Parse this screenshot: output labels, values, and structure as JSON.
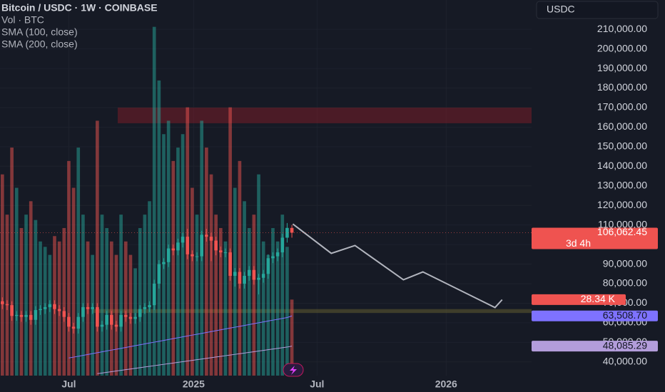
{
  "chart_data": {
    "type": "candlestick",
    "title": "Bitcoin / USDC · 1W · COINBASE",
    "legend": [
      "Vol · BTC",
      "SMA (100, close)",
      "SMA (200, close)"
    ],
    "currency_button": "USDC",
    "x": [
      0,
      1,
      2,
      3,
      4,
      5,
      6,
      7,
      8,
      9,
      10,
      11,
      12,
      13,
      14,
      15,
      16,
      17,
      18,
      19,
      20,
      21,
      22,
      23,
      24,
      25,
      26,
      27,
      28,
      29,
      30,
      31,
      32,
      33,
      34,
      35,
      36,
      37,
      38,
      39,
      40,
      41,
      42,
      43,
      44,
      45,
      46,
      47,
      48,
      49,
      50,
      51,
      52,
      53,
      54,
      55,
      56,
      57,
      58,
      59,
      60,
      61
    ],
    "open": [
      71000,
      69500,
      69000,
      63500,
      64000,
      63000,
      64000,
      61500,
      66500,
      67000,
      68000,
      69500,
      67000,
      66000,
      63000,
      58000,
      57000,
      63000,
      68000,
      67000,
      68000,
      58000,
      59000,
      64000,
      59000,
      58000,
      64000,
      63000,
      62000,
      63000,
      67000,
      68000,
      69000,
      80000,
      90000,
      91000,
      98000,
      97000,
      101000,
      104000,
      95000,
      94000,
      94000,
      105000,
      104000,
      102000,
      97000,
      96000,
      96000,
      84000,
      86000,
      80000,
      84000,
      87000,
      82000,
      83000,
      85000,
      93000,
      94000,
      96000,
      103500,
      108500
    ],
    "high": [
      73000,
      71500,
      71000,
      66000,
      66000,
      66000,
      66000,
      68500,
      69000,
      70000,
      71500,
      71500,
      69000,
      68000,
      65000,
      60000,
      65000,
      70000,
      70000,
      70000,
      70000,
      61000,
      66000,
      66000,
      61000,
      66000,
      66000,
      65000,
      65000,
      69000,
      70000,
      71000,
      82000,
      92000,
      93000,
      100000,
      100000,
      103000,
      106000,
      108000,
      97000,
      96000,
      107000,
      108000,
      106000,
      104000,
      99000,
      98000,
      98000,
      88000,
      88000,
      86000,
      89000,
      89000,
      85000,
      87000,
      95000,
      96000,
      98000,
      105500,
      111000,
      110000
    ],
    "low": [
      67000,
      66500,
      61000,
      61000,
      60500,
      60500,
      59000,
      59000,
      64000,
      64500,
      65500,
      64500,
      63500,
      60500,
      55500,
      54500,
      54500,
      60500,
      64500,
      64500,
      55500,
      55500,
      56500,
      56500,
      55500,
      55500,
      60500,
      59500,
      59500,
      60500,
      64500,
      65500,
      66500,
      77500,
      87500,
      88500,
      94500,
      94500,
      98500,
      92500,
      91500,
      91500,
      91500,
      101500,
      91500,
      94500,
      93500,
      93500,
      81500,
      78500,
      77500,
      77500,
      81500,
      79500,
      74500,
      80500,
      82500,
      90500,
      91500,
      93500,
      101000,
      103500
    ],
    "close": [
      69500,
      69000,
      63500,
      64000,
      63000,
      64000,
      61500,
      66500,
      67000,
      68000,
      69500,
      67000,
      66000,
      63000,
      58000,
      57000,
      63000,
      68000,
      67000,
      68000,
      58000,
      59000,
      64000,
      59000,
      58000,
      64000,
      63000,
      62000,
      63000,
      67000,
      68000,
      69000,
      80000,
      90000,
      91000,
      98000,
      97000,
      101000,
      104000,
      95000,
      94000,
      94000,
      105000,
      104000,
      102000,
      97000,
      96000,
      96000,
      84000,
      86000,
      80000,
      84000,
      87000,
      82000,
      83000,
      85000,
      93000,
      94000,
      96000,
      103500,
      108500,
      106062.45
    ],
    "up_color": "#26a69a",
    "down_color": "#ef5350",
    "volume": {
      "values": [
        75,
        60,
        85,
        70,
        55,
        60,
        65,
        58,
        50,
        48,
        45,
        52,
        50,
        55,
        80,
        70,
        85,
        60,
        50,
        45,
        95,
        60,
        55,
        50,
        45,
        60,
        50,
        45,
        40,
        55,
        60,
        65,
        130,
        110,
        90,
        95,
        80,
        85,
        90,
        100,
        70,
        60,
        95,
        85,
        75,
        60,
        55,
        50,
        100,
        70,
        80,
        65,
        55,
        60,
        75,
        50,
        45,
        55,
        50,
        60,
        48,
        28.34
      ],
      "last_label": "28.34 K",
      "ylim": [
        0,
        140
      ]
    },
    "series": [
      {
        "name": "SMA (100, close)",
        "color": "#7e72ff",
        "last_label": "63,508.70",
        "values": [
          null,
          null,
          null,
          null,
          null,
          null,
          null,
          null,
          null,
          null,
          null,
          null,
          null,
          null,
          42000,
          42450,
          42900,
          43350,
          43800,
          44250,
          44700,
          45150,
          45600,
          46050,
          46500,
          46950,
          47400,
          47850,
          48300,
          48750,
          49200,
          49650,
          50100,
          50550,
          51000,
          51450,
          51900,
          52350,
          52800,
          53250,
          53700,
          54150,
          54600,
          55050,
          55500,
          55950,
          56400,
          56850,
          57300,
          57750,
          58200,
          58650,
          59100,
          59550,
          60000,
          60450,
          60900,
          61350,
          61800,
          62250,
          62700,
          63508.7
        ]
      },
      {
        "name": "SMA (200, close)",
        "color": "#b39ddb",
        "last_label": "48,085.29",
        "values": [
          null,
          null,
          null,
          null,
          null,
          null,
          null,
          null,
          null,
          null,
          null,
          null,
          null,
          null,
          null,
          null,
          null,
          null,
          null,
          null,
          34000,
          34340,
          34680,
          35020,
          35360,
          35700,
          36040,
          36380,
          36720,
          37060,
          37400,
          37740,
          38080,
          38420,
          38760,
          39100,
          39440,
          39780,
          40120,
          40460,
          40800,
          41140,
          41480,
          41820,
          42160,
          42500,
          42840,
          43180,
          43520,
          43860,
          44200,
          44540,
          44880,
          45220,
          45560,
          45900,
          46240,
          46580,
          46920,
          47260,
          47600,
          48085.29
        ]
      }
    ],
    "last_price": {
      "label": "106,062.45",
      "countdown": "3d 4h"
    },
    "zones": [
      {
        "from": 162000,
        "to": 170000,
        "x0": 24.3,
        "color": "rgba(120,30,40,0.55)"
      },
      {
        "from": 65000,
        "to": 67000,
        "x0": 19,
        "color": "rgba(110,105,50,0.45)"
      }
    ],
    "projection": {
      "x": [
        61.2,
        69.3,
        74.3,
        84.5,
        88.6,
        103.8,
        105.3
      ],
      "y": [
        110500,
        95500,
        99500,
        82000,
        86000,
        67800,
        71800
      ],
      "color": "#b2b5be"
    },
    "xlim": [
      -0.5,
      111.5
    ],
    "xticks": [
      {
        "value": 14,
        "label": "Jul"
      },
      {
        "value": 40.3,
        "label": "2025"
      },
      {
        "value": 66.3,
        "label": "Jul"
      },
      {
        "value": 93.5,
        "label": "2026"
      }
    ],
    "ylim": [
      33000,
      225000
    ],
    "yticks": [
      {
        "value": 40000,
        "label": "40,000.00"
      },
      {
        "value": 50000,
        "label": "50,000.00"
      },
      {
        "value": 60000,
        "label": "60,000.00"
      },
      {
        "value": 70000,
        "label": "70,000.00"
      },
      {
        "value": 80000,
        "label": "80,000.00"
      },
      {
        "value": 90000,
        "label": "90,000.00"
      },
      {
        "value": 100000,
        "label": "100,000.00"
      },
      {
        "value": 110000,
        "label": "110,000.00"
      },
      {
        "value": 120000,
        "label": "120,000.00"
      },
      {
        "value": 130000,
        "label": "130,000.00"
      },
      {
        "value": 140000,
        "label": "140,000.00"
      },
      {
        "value": 150000,
        "label": "150,000.00"
      },
      {
        "value": 160000,
        "label": "160,000.00"
      },
      {
        "value": 170000,
        "label": "170,000.00"
      },
      {
        "value": 180000,
        "label": "180,000.00"
      },
      {
        "value": 190000,
        "label": "190,000.00"
      },
      {
        "value": 200000,
        "label": "200,000.00"
      },
      {
        "value": 210000,
        "label": "210,000.00"
      }
    ],
    "grid": true
  }
}
